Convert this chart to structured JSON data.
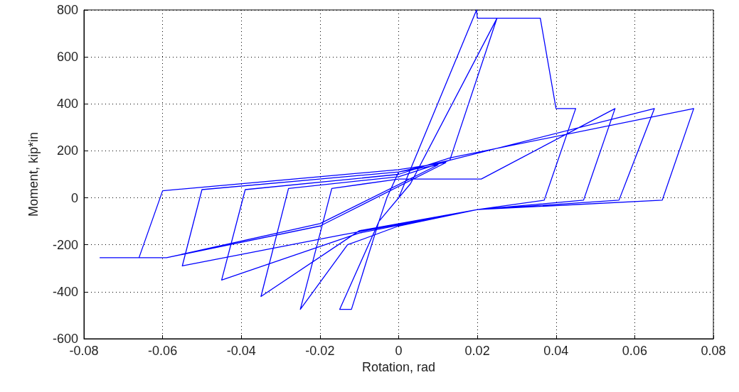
{
  "chart_data": {
    "type": "line",
    "xlabel": "Rotation, rad",
    "ylabel": "Moment, kip*in",
    "xlim": [
      -0.08,
      0.08
    ],
    "xticks": [
      -0.08,
      -0.06,
      -0.04,
      -0.02,
      0,
      0.02,
      0.04,
      0.06,
      0.08
    ],
    "ylim": [
      -600,
      800
    ],
    "yticks": [
      -600,
      -400,
      -200,
      0,
      200,
      400,
      600,
      800
    ],
    "grid": true,
    "marker": "none",
    "line_style": "solid",
    "series": [
      {
        "color": "#0000ff",
        "x": [
          0,
          0.0198,
          0.02,
          0.025,
          0.013,
          0.0,
          -0.003,
          -0.005,
          -0.012,
          -0.015,
          -0.005,
          0.003,
          0.025,
          0.036,
          0.04,
          0.045,
          0.037,
          0.02,
          0.0,
          -0.013,
          -0.025,
          -0.017,
          0.0,
          0.021,
          0.055,
          0.047,
          0.02,
          -0.01,
          -0.035,
          -0.028,
          0.0,
          0.013,
          0.065,
          0.056,
          0.02,
          -0.01,
          -0.045,
          -0.039,
          0.0,
          0.013,
          0.075,
          0.067,
          0.02,
          -0.015,
          -0.055,
          -0.05,
          0.0,
          0.01,
          -0.02,
          -0.059,
          -0.066,
          -0.06,
          0.0,
          0.012,
          -0.02,
          -0.059,
          -0.076
        ],
        "values": [
          0,
          800,
          765,
          765,
          160,
          110,
          0,
          -100,
          -475,
          -475,
          -100,
          60,
          765,
          765,
          380,
          380,
          -10,
          -50,
          -120,
          -200,
          -475,
          40,
          80,
          80,
          380,
          -10,
          -50,
          -140,
          -420,
          40,
          90,
          160,
          380,
          -10,
          -50,
          -150,
          -350,
          35,
          100,
          170,
          380,
          -10,
          -50,
          -160,
          -290,
          35,
          110,
          140,
          -110,
          -255,
          -255,
          30,
          120,
          150,
          -120,
          -255,
          -255
        ]
      }
    ]
  }
}
